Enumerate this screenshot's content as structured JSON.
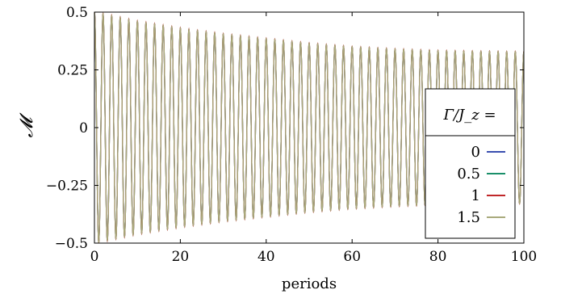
{
  "chart_data": {
    "type": "line",
    "title": "",
    "xlabel": "periods",
    "ylabel": "𝓜",
    "xlim": [
      0,
      100
    ],
    "ylim": [
      -0.5,
      0.5
    ],
    "xticks": [
      0,
      20,
      40,
      60,
      80,
      100
    ],
    "xtick_labels": [
      "0",
      "20",
      "40",
      "60",
      "80",
      "100"
    ],
    "yticks": [
      -0.5,
      -0.25,
      0,
      0.25,
      0.5
    ],
    "ytick_labels": [
      "−0.5",
      "−0.25",
      "0",
      "0.25",
      "0.5"
    ],
    "grid": false,
    "legend_position": "right",
    "legend_title": "Γ/J_z =",
    "oscillation": {
      "cycles_per_period": 0.5,
      "envelope": {
        "x": [
          0,
          5,
          10,
          20,
          30,
          40,
          50,
          60,
          70,
          80,
          90,
          100
        ],
        "amplitude": [
          0.5,
          0.48,
          0.46,
          0.43,
          0.405,
          0.385,
          0.365,
          0.35,
          0.34,
          0.333,
          0.33,
          0.328
        ]
      }
    },
    "series": [
      {
        "name": "0",
        "color": "#3a4fb0",
        "amplitude_scale": 0.997
      },
      {
        "name": "0.5",
        "color": "#1a8f6a",
        "amplitude_scale": 0.999
      },
      {
        "name": "1",
        "color": "#c0282a",
        "amplitude_scale": 1.004
      },
      {
        "name": "1.5",
        "color": "#a9aa7c",
        "amplitude_scale": 1.0
      }
    ]
  }
}
